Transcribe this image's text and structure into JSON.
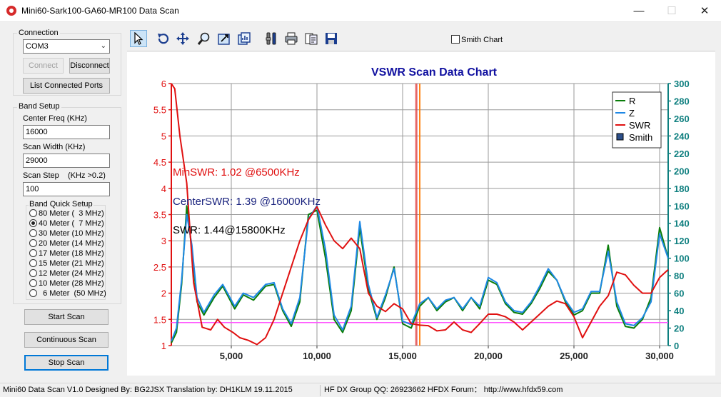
{
  "window": {
    "title": "Mini60-Sark100-GA60-MR100 Data Scan",
    "minimize": "—",
    "maximize": "☐",
    "close": "✕"
  },
  "connection": {
    "group_label": "Connection",
    "port_value": "COM3",
    "connect_label": "Connect",
    "disconnect_label": "Disconnect",
    "list_ports_label": "List Connected Ports"
  },
  "band_setup": {
    "group_label": "Band Setup",
    "center_freq_label": "Center Freq  (KHz)",
    "center_freq_value": "16000",
    "scan_width_label": "Scan Width   (KHz)",
    "scan_width_value": "29000",
    "scan_step_label": "Scan Step",
    "scan_step_hint": "(KHz >0.2)",
    "scan_step_value": "100",
    "quick_setup_label": "Band Quick Setup",
    "bands": [
      {
        "label": "80 Meter (  3 MHz)",
        "selected": false
      },
      {
        "label": "40 Meter (  7 MHz)",
        "selected": true
      },
      {
        "label": "30 Meter (10 MHz)",
        "selected": false
      },
      {
        "label": "20 Meter (14 MHz)",
        "selected": false
      },
      {
        "label": "17 Meter (18 MHz)",
        "selected": false
      },
      {
        "label": "15 Meter (21 MHz)",
        "selected": false
      },
      {
        "label": "12 Meter (24 MHz)",
        "selected": false
      },
      {
        "label": "10 Meter (28 MHz)",
        "selected": false
      },
      {
        "label": "  6 Meter  (50 MHz)",
        "selected": false
      }
    ]
  },
  "actions": {
    "start_scan": "Start Scan",
    "continuous_scan": "Continuous Scan",
    "stop_scan": "Stop Scan"
  },
  "toolbar": {
    "smith_chart_label": "Smith Chart",
    "smith_chart_checked": false
  },
  "chart_data": {
    "type": "line",
    "title": "VSWR Scan Data Chart",
    "x_ticks": [
      "5,000",
      "10,000",
      "15,000",
      "20,000",
      "25,000",
      "30,000"
    ],
    "x_tick_values": [
      5000,
      10000,
      15000,
      20000,
      25000,
      30000
    ],
    "xlim": [
      1500,
      30500
    ],
    "y_left_ticks": [
      "1",
      "1.5",
      "2",
      "2.5",
      "3",
      "3.5",
      "4",
      "4.5",
      "5",
      "5.5",
      "6"
    ],
    "y_left_lim": [
      1,
      6
    ],
    "y_right_ticks": [
      "0",
      "20",
      "40",
      "60",
      "80",
      "100",
      "120",
      "140",
      "160",
      "180",
      "200",
      "220",
      "240",
      "260",
      "280",
      "300"
    ],
    "y_right_lim": [
      0,
      300
    ],
    "grid": true,
    "legend_position": "top-right",
    "legend": [
      {
        "name": "R",
        "color": "#0a7d0a",
        "kind": "line"
      },
      {
        "name": "Z",
        "color": "#1e88e5",
        "kind": "line"
      },
      {
        "name": "SWR",
        "color": "#e01010",
        "kind": "line"
      },
      {
        "name": "Smith",
        "color": "#2d4f8a",
        "kind": "box"
      }
    ],
    "annotations": {
      "min_swr": "MinSWR: 1.02 @6500KHz",
      "center_swr": "CenterSWR: 1.39 @16000KHz",
      "cursor_swr": "SWR: 1.44@15800KHz"
    },
    "reference_swr": 1.44,
    "markers": [
      15800,
      16000
    ],
    "swr": {
      "x": [
        1500,
        1700,
        2000,
        2400,
        2800,
        3300,
        3800,
        4200,
        4600,
        5100,
        5500,
        6000,
        6500,
        7000,
        7500,
        8000,
        8500,
        9000,
        9500,
        10000,
        10500,
        11000,
        11500,
        12000,
        12500,
        13000,
        13500,
        14000,
        14500,
        15000,
        15500,
        16000,
        16500,
        17000,
        17500,
        18000,
        18500,
        19000,
        19500,
        20000,
        20500,
        21000,
        21500,
        22000,
        22500,
        23000,
        23500,
        24000,
        24500,
        25000,
        25500,
        26000,
        26500,
        27000,
        27500,
        28000,
        28500,
        29000,
        29500,
        30000,
        30500
      ],
      "y": [
        6.0,
        5.9,
        5.0,
        4.1,
        2.2,
        1.35,
        1.3,
        1.5,
        1.35,
        1.25,
        1.15,
        1.1,
        1.02,
        1.15,
        1.5,
        2.0,
        2.5,
        3.0,
        3.4,
        3.65,
        3.3,
        3.0,
        2.85,
        3.05,
        2.85,
        2.0,
        1.75,
        1.65,
        1.8,
        1.7,
        1.42,
        1.39,
        1.38,
        1.28,
        1.3,
        1.45,
        1.3,
        1.25,
        1.42,
        1.6,
        1.6,
        1.55,
        1.45,
        1.3,
        1.45,
        1.6,
        1.75,
        1.85,
        1.8,
        1.55,
        1.15,
        1.45,
        1.75,
        1.95,
        2.4,
        2.35,
        2.15,
        2.0,
        2.0,
        2.3,
        2.45
      ]
    },
    "r": {
      "x": [
        1500,
        1800,
        2100,
        2400,
        2700,
        3000,
        3400,
        4000,
        4500,
        5200,
        5700,
        6300,
        7000,
        7500,
        8000,
        8500,
        9000,
        9500,
        10000,
        10500,
        11000,
        11500,
        12000,
        12500,
        13000,
        13500,
        14000,
        14500,
        15000,
        15500,
        16000,
        16500,
        17000,
        17500,
        18000,
        18500,
        19000,
        19500,
        20000,
        20500,
        21000,
        21500,
        22000,
        22500,
        23000,
        23500,
        24000,
        24500,
        25000,
        25500,
        26000,
        26500,
        27000,
        27500,
        28000,
        28500,
        29000,
        29500,
        30000,
        30500
      ],
      "y": [
        3,
        15,
        70,
        160,
        110,
        50,
        35,
        55,
        68,
        42,
        58,
        52,
        68,
        70,
        40,
        22,
        50,
        150,
        155,
        100,
        30,
        15,
        40,
        135,
        65,
        30,
        55,
        90,
        25,
        20,
        45,
        55,
        40,
        50,
        55,
        40,
        55,
        42,
        75,
        70,
        48,
        38,
        36,
        48,
        65,
        85,
        75,
        50,
        35,
        40,
        60,
        60,
        115,
        45,
        22,
        20,
        30,
        55,
        135,
        100
      ]
    },
    "z": {
      "x": [
        1500,
        1800,
        2100,
        2400,
        2700,
        3000,
        3400,
        4000,
        4500,
        5200,
        5700,
        6300,
        7000,
        7500,
        8000,
        8500,
        9000,
        9500,
        10000,
        10500,
        11000,
        11500,
        12000,
        12500,
        13000,
        13500,
        14000,
        14500,
        15000,
        15500,
        16000,
        16500,
        17000,
        17500,
        18000,
        18500,
        19000,
        19500,
        20000,
        20500,
        21000,
        21500,
        22000,
        22500,
        23000,
        23500,
        24000,
        24500,
        25000,
        25500,
        26000,
        26500,
        27000,
        27500,
        28000,
        28500,
        29000,
        29500,
        30000,
        30500
      ],
      "y": [
        5,
        20,
        75,
        150,
        115,
        55,
        38,
        58,
        70,
        45,
        60,
        55,
        70,
        72,
        42,
        25,
        55,
        145,
        160,
        110,
        35,
        18,
        45,
        142,
        70,
        32,
        58,
        88,
        28,
        24,
        48,
        55,
        42,
        52,
        55,
        42,
        55,
        45,
        78,
        72,
        50,
        40,
        38,
        50,
        68,
        88,
        75,
        52,
        38,
        42,
        62,
        62,
        108,
        50,
        25,
        23,
        32,
        50,
        128,
        100
      ]
    }
  },
  "status": {
    "version": "Mini60 Data Scan V1.0   Designed By: BG2JSX  Translation by: DH1KLM   19.11.2015",
    "group_info": "HF DX Group QQ: 26923662  HFDX Forum：  http://www.hfdx59.com"
  }
}
